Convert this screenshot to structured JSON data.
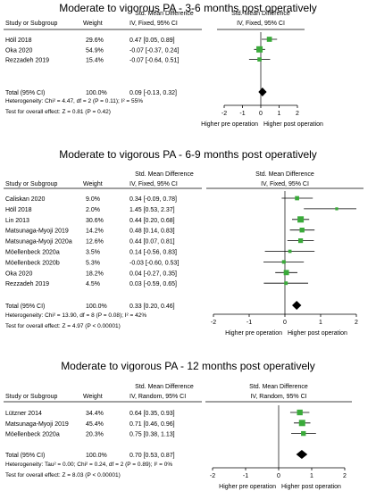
{
  "chart_data": [
    {
      "type": "forest",
      "title": "Moderate to vigorous PA - 3-6 months post operatively",
      "header_stat": "Std. Mean Difference",
      "header_method": "IV, Fixed, 95% CI",
      "col_study": "Study or Subgroup",
      "col_weight": "Weight",
      "studies": [
        {
          "name": "Höll 2018",
          "weight": "29.6%",
          "ci_text": "0.47 [0.05, 0.89]",
          "est": 0.47,
          "lo": 0.05,
          "hi": 0.89,
          "w": 29.6
        },
        {
          "name": "Oka 2020",
          "weight": "54.9%",
          "ci_text": "-0.07 [-0.37, 0.24]",
          "est": -0.07,
          "lo": -0.37,
          "hi": 0.24,
          "w": 54.9
        },
        {
          "name": "Rezzadeh 2019",
          "weight": "15.4%",
          "ci_text": "-0.07 [-0.64, 0.51]",
          "est": -0.07,
          "lo": -0.64,
          "hi": 0.51,
          "w": 15.4
        }
      ],
      "total": {
        "label": "Total (95% CI)",
        "weight": "100.0%",
        "ci_text": "0.09 [-0.13, 0.32]",
        "est": 0.09,
        "lo": -0.13,
        "hi": 0.32
      },
      "heterogeneity": "Heterogeneity: Chi² = 4.47, df = 2 (P = 0.11); I² = 55%",
      "overall_effect": "Test for overall effect: Z = 0.81 (P = 0.42)",
      "axis": {
        "min": -2,
        "max": 2,
        "ticks": [
          "-2",
          "-1",
          "0",
          "1",
          "2"
        ]
      },
      "left_label": "Higher pre operation",
      "right_label": "Higher post operation"
    },
    {
      "type": "forest",
      "title": "Moderate to vigorous PA - 6-9 months post operatively",
      "header_stat": "Std. Mean Difference",
      "header_method": "IV, Fixed, 95% CI",
      "col_study": "Study or Subgroup",
      "col_weight": "Weight",
      "studies": [
        {
          "name": "Caliskan 2020",
          "weight": "9.0%",
          "ci_text": "0.34 [-0.09, 0.78]",
          "est": 0.34,
          "lo": -0.09,
          "hi": 0.78,
          "w": 9.0
        },
        {
          "name": "Höll 2018",
          "weight": "2.0%",
          "ci_text": "1.45 [0.53, 2.37]",
          "est": 1.45,
          "lo": 0.53,
          "hi": 2.37,
          "w": 2.0
        },
        {
          "name": "Lin 2013",
          "weight": "30.6%",
          "ci_text": "0.44 [0.20, 0.68]",
          "est": 0.44,
          "lo": 0.2,
          "hi": 0.68,
          "w": 30.6
        },
        {
          "name": "Matsunaga-Myoji 2019",
          "weight": "14.2%",
          "ci_text": "0.48 [0.14, 0.83]",
          "est": 0.48,
          "lo": 0.14,
          "hi": 0.83,
          "w": 14.2
        },
        {
          "name": "Matsunaga-Myoji 2020a",
          "weight": "12.6%",
          "ci_text": "0.44 [0.07, 0.81]",
          "est": 0.44,
          "lo": 0.07,
          "hi": 0.81,
          "w": 12.6
        },
        {
          "name": "Möellenbeck 2020a",
          "weight": "3.5%",
          "ci_text": "0.14 [-0.56, 0.83]",
          "est": 0.14,
          "lo": -0.56,
          "hi": 0.83,
          "w": 3.5
        },
        {
          "name": "Möellenbeck 2020b",
          "weight": "5.3%",
          "ci_text": "-0.03 [-0.60, 0.53]",
          "est": -0.03,
          "lo": -0.6,
          "hi": 0.53,
          "w": 5.3
        },
        {
          "name": "Oka 2020",
          "weight": "18.2%",
          "ci_text": "0.04 [-0.27, 0.35]",
          "est": 0.04,
          "lo": -0.27,
          "hi": 0.35,
          "w": 18.2
        },
        {
          "name": "Rezzadeh 2019",
          "weight": "4.5%",
          "ci_text": "0.03 [-0.59, 0.65]",
          "est": 0.03,
          "lo": -0.59,
          "hi": 0.65,
          "w": 4.5
        }
      ],
      "total": {
        "label": "Total (95% CI)",
        "weight": "100.0%",
        "ci_text": "0.33 [0.20, 0.46]",
        "est": 0.33,
        "lo": 0.2,
        "hi": 0.46
      },
      "heterogeneity": "Heterogeneity: Chi² = 13.90, df = 8 (P = 0.08); I² = 42%",
      "overall_effect": "Test for overall effect: Z = 4.97 (P < 0.00001)",
      "axis": {
        "min": -2,
        "max": 2,
        "ticks": [
          "-2",
          "-1",
          "0",
          "1",
          "2"
        ]
      },
      "left_label": "Higher pre operation",
      "right_label": "Higher post operation"
    },
    {
      "type": "forest",
      "title": "Moderate to vigorous PA - 12 months post operatively",
      "header_stat": "Std. Mean Difference",
      "header_method": "IV, Random, 95% CI",
      "col_study": "Study or Subgroup",
      "col_weight": "Weight",
      "studies": [
        {
          "name": "Lützner 2014",
          "weight": "34.4%",
          "ci_text": "0.64 [0.35, 0.93]",
          "est": 0.64,
          "lo": 0.35,
          "hi": 0.93,
          "w": 34.4
        },
        {
          "name": "Matsunaga-Myoji 2019",
          "weight": "45.4%",
          "ci_text": "0.71 [0.46, 0.96]",
          "est": 0.71,
          "lo": 0.46,
          "hi": 0.96,
          "w": 45.4
        },
        {
          "name": "Möellenbeck 2020a",
          "weight": "20.3%",
          "ci_text": "0.75 [0.38, 1.13]",
          "est": 0.75,
          "lo": 0.38,
          "hi": 1.13,
          "w": 20.3
        }
      ],
      "total": {
        "label": "Total (95% CI)",
        "weight": "100.0%",
        "ci_text": "0.70 [0.53, 0.87]",
        "est": 0.7,
        "lo": 0.53,
        "hi": 0.87
      },
      "heterogeneity": "Heterogeneity: Tau² = 0.00; Chi² = 0.24, df = 2 (P = 0.89); I² = 0%",
      "overall_effect": "Test for overall effect: Z = 8.03 (P < 0.00001)",
      "axis": {
        "min": -2,
        "max": 2,
        "ticks": [
          "-2",
          "-1",
          "0",
          "1",
          "2"
        ]
      },
      "left_label": "Higher pre operation",
      "right_label": "Higher post operation"
    }
  ],
  "colors": {
    "marker": "#3aaa3a",
    "diamond": "#000000",
    "line": "#000000"
  }
}
